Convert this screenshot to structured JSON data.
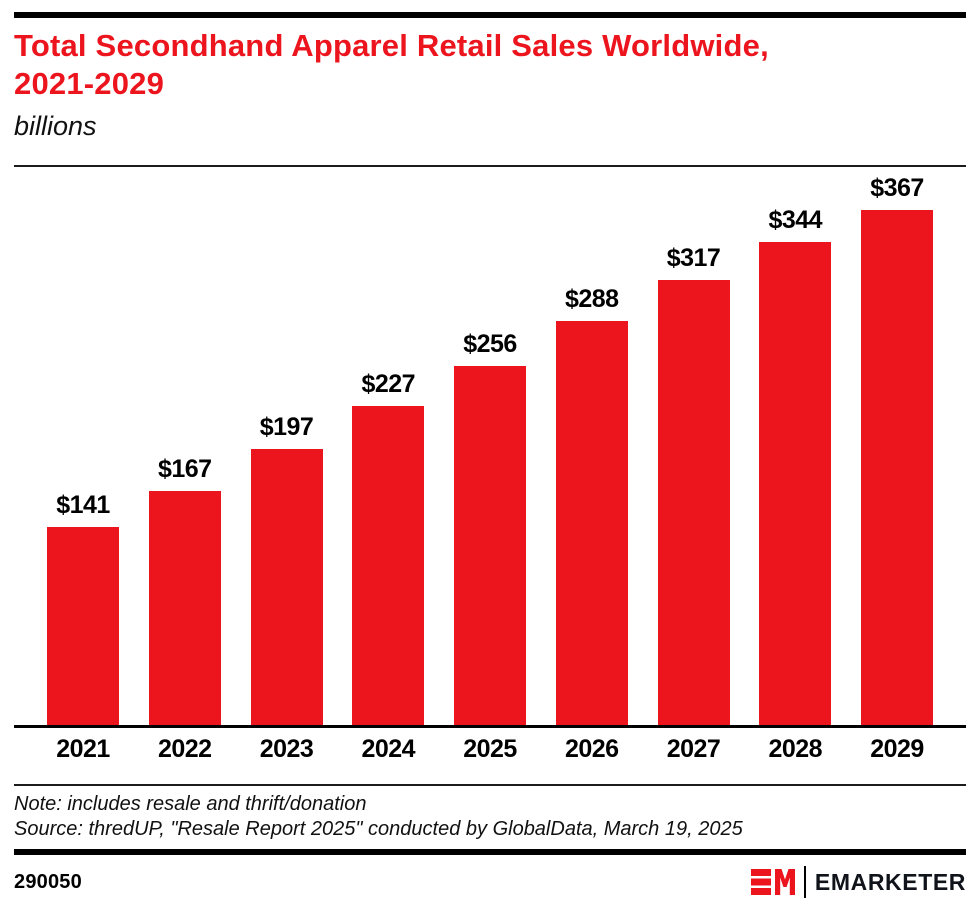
{
  "page": {
    "accent_red": "#EC141D"
  },
  "header": {
    "title_line1": "Total Secondhand Apparel Retail Sales Worldwide,",
    "title_line2": "2021-2029",
    "subtitle": "billions"
  },
  "chart_data": {
    "type": "bar",
    "title": "Total Secondhand Apparel Retail Sales Worldwide, 2021-2029",
    "ylabel": "billions",
    "categories": [
      "2021",
      "2022",
      "2023",
      "2024",
      "2025",
      "2026",
      "2027",
      "2028",
      "2029"
    ],
    "values": [
      141,
      167,
      197,
      227,
      256,
      288,
      317,
      344,
      367
    ],
    "labels": [
      "$141",
      "$167",
      "$197",
      "$227",
      "$256",
      "$288",
      "$317",
      "$344",
      "$367"
    ],
    "ylim": [
      0,
      367
    ],
    "bar_color": "#EC141D",
    "grid": false,
    "legend": "none"
  },
  "footnotes": {
    "note": "Note: includes resale and thrift/donation",
    "source": "Source: thredUP, \"Resale Report 2025\" conducted by GlobalData, March 19, 2025"
  },
  "footer": {
    "chart_id": "290050",
    "brand": "EMARKETER"
  }
}
